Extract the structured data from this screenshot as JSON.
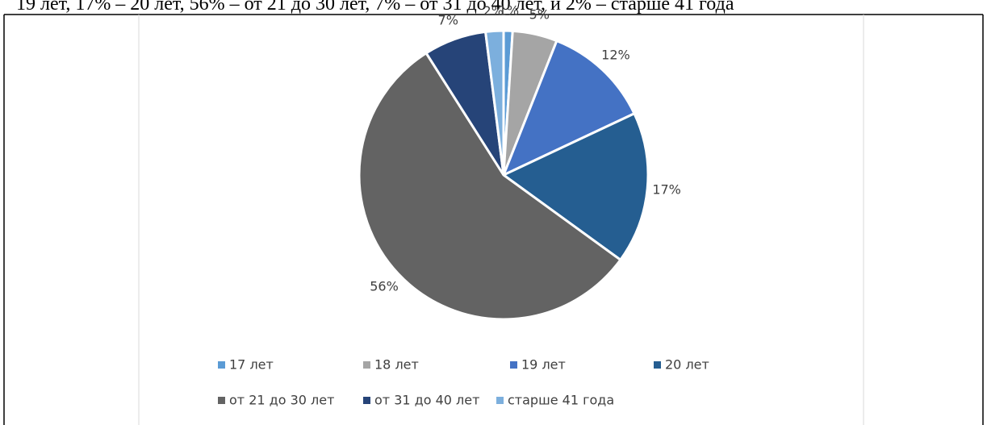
{
  "document_text": "19 лет, 17% – 20 лет, 56% – от 21 до 30 лет, 7% – от 31 до 40 лет, и 2% – старше 41 года",
  "chart_data": {
    "type": "pie",
    "categories": [
      "17 лет",
      "18 лет",
      "19 лет",
      "20 лет",
      "от 21 до 30 лет",
      "от 31 до 40 лет",
      "старше 41 года"
    ],
    "values": [
      1,
      5,
      12,
      17,
      56,
      7,
      2
    ],
    "value_labels": [
      "1%",
      "5%",
      "12%",
      "17%",
      "56%",
      "7%",
      "2%"
    ],
    "colors": [
      "#5b9bd5",
      "#a5a5a5",
      "#4472c4",
      "#255e91",
      "#636363",
      "#264478",
      "#7cafdd"
    ],
    "legend": "bottom"
  }
}
